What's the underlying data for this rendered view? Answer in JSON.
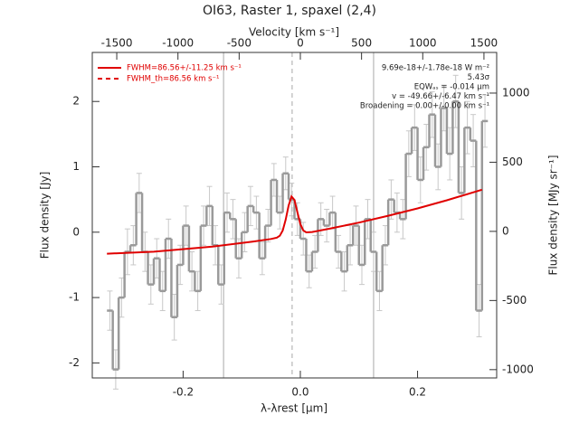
{
  "chart_data": {
    "type": "line",
    "title": "OI63, Raster 1, spaxel (2,4)",
    "xlabel": "λ-λrest [μm]",
    "x2label": "Velocity [km s⁻¹]",
    "ylabel": "Flux density [Jy]",
    "y2label": "Flux density [MJy sr⁻¹]",
    "xlim": [
      -0.355,
      0.335
    ],
    "xticks": [
      -0.2,
      {
        "value": 0,
        "label": "0.0"
      },
      0.2
    ],
    "x2lim": [
      -1700,
      1604
    ],
    "x2ticks": [
      -1500,
      -1000,
      -500,
      0,
      500,
      1000,
      1500
    ],
    "ylim": [
      -2.23,
      2.75
    ],
    "yticks": [
      -2,
      -1,
      0,
      1,
      2
    ],
    "y2lim": [
      -1060,
      1294
    ],
    "y2ticks": [
      -1000,
      -500,
      0,
      500,
      1000
    ],
    "series": [
      {
        "color": "#9a9a9a",
        "errcolor": "#c8c8c8",
        "style": "steps",
        "x": [
          -0.325,
          -0.315,
          -0.305,
          -0.295,
          -0.285,
          -0.275,
          -0.265,
          -0.255,
          -0.245,
          -0.235,
          -0.225,
          -0.215,
          -0.205,
          -0.195,
          -0.185,
          -0.175,
          -0.165,
          -0.155,
          -0.145,
          -0.135,
          -0.125,
          -0.115,
          -0.105,
          -0.095,
          -0.085,
          -0.075,
          -0.065,
          -0.055,
          -0.045,
          -0.035,
          -0.025,
          -0.015,
          -0.005,
          0.005,
          0.015,
          0.025,
          0.035,
          0.045,
          0.055,
          0.065,
          0.075,
          0.085,
          0.095,
          0.105,
          0.115,
          0.125,
          0.135,
          0.145,
          0.155,
          0.165,
          0.175,
          0.185,
          0.195,
          0.205,
          0.215,
          0.225,
          0.235,
          0.245,
          0.255,
          0.265,
          0.275,
          0.285,
          0.295,
          0.305,
          0.315
        ],
        "values": [
          -1.2,
          -2.1,
          -1.0,
          -0.3,
          -0.2,
          0.6,
          -0.3,
          -0.8,
          -0.4,
          -0.9,
          -0.1,
          -1.3,
          -0.5,
          0.1,
          -0.6,
          -0.9,
          0.1,
          0.4,
          -0.2,
          -0.8,
          0.3,
          0.2,
          -0.4,
          0.0,
          0.4,
          0.3,
          -0.4,
          0.1,
          0.8,
          0.3,
          0.9,
          0.5,
          0.2,
          -0.1,
          -0.6,
          -0.3,
          0.2,
          0.1,
          0.3,
          -0.3,
          -0.6,
          -0.2,
          0.1,
          -0.5,
          0.2,
          -0.3,
          -0.9,
          -0.2,
          0.5,
          0.3,
          0.2,
          1.2,
          1.6,
          0.8,
          1.3,
          1.8,
          1.0,
          1.9,
          1.2,
          2.0,
          0.6,
          1.6,
          1.4,
          -1.2,
          1.7
        ],
        "errors": [
          0.3,
          0.3,
          0.3,
          0.35,
          0.3,
          0.3,
          0.3,
          0.3,
          0.3,
          0.3,
          0.3,
          0.35,
          0.3,
          0.3,
          0.3,
          0.3,
          0.3,
          0.3,
          0.3,
          0.3,
          0.3,
          0.3,
          0.3,
          0.3,
          0.3,
          0.25,
          0.25,
          0.25,
          0.25,
          0.25,
          0.25,
          0.25,
          0.25,
          0.25,
          0.25,
          0.25,
          0.25,
          0.25,
          0.25,
          0.25,
          0.3,
          0.3,
          0.3,
          0.3,
          0.3,
          0.3,
          0.3,
          0.3,
          0.3,
          0.3,
          0.3,
          0.35,
          0.35,
          0.35,
          0.35,
          0.35,
          0.35,
          0.35,
          0.4,
          0.4,
          0.4,
          0.4,
          0.4,
          0.4,
          0.4
        ]
      },
      {
        "color": "#e00000",
        "style": "solid",
        "x": [
          -0.33,
          -0.25,
          -0.15,
          -0.08,
          -0.05,
          -0.04,
          -0.035,
          -0.03,
          -0.025,
          -0.02,
          -0.015,
          -0.01,
          -0.005,
          0,
          0.005,
          0.01,
          0.02,
          0.05,
          0.1,
          0.15,
          0.2,
          0.25,
          0.31
        ],
        "values": [
          -0.329,
          -0.298,
          -0.221,
          -0.143,
          -0.104,
          -0.084,
          -0.054,
          0.027,
          0.192,
          0.408,
          0.547,
          0.492,
          0.305,
          0.125,
          0.027,
          -0.003,
          0.002,
          0.054,
          0.147,
          0.251,
          0.364,
          0.488,
          0.65
        ]
      }
    ],
    "vlines": [
      {
        "x": -0.131,
        "color": "#a8a8a8",
        "style": "solid"
      },
      {
        "x": -0.014,
        "color": "#a8a8a8",
        "style": "dashed"
      },
      {
        "x": 0.125,
        "color": "#a8a8a8",
        "style": "solid"
      }
    ],
    "legend": {
      "corner": "top-left",
      "entries": [
        {
          "label": "FWHM=86.56+/-11.25 km s⁻¹",
          "color": "#e00000",
          "style": "solid"
        },
        {
          "label": "FWHM_th=86.56 km s⁻¹",
          "color": "#e00000",
          "style": "dashed"
        }
      ]
    },
    "annotations": [
      "9.69e-18+/-1.78e-18 W m⁻²",
      "5.43σ",
      "EQWₐₛ = -0.014 μm",
      "v = -49.66+/-6.47 km s⁻¹",
      "Broadening = 0.00+/-0.00 km s⁻¹"
    ]
  }
}
